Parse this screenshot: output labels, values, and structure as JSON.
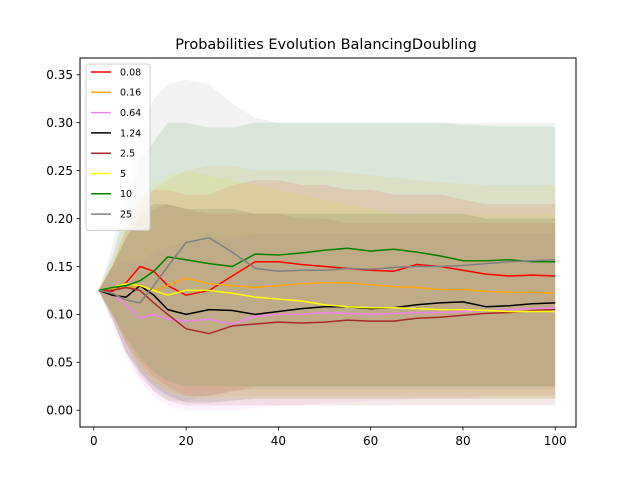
{
  "chart_data": {
    "type": "line",
    "title": "Probabilities Evolution BalancingDoubling",
    "xlabel": "",
    "ylabel": "",
    "xlim": [
      -3,
      104.5
    ],
    "ylim": [
      -0.0175,
      0.3675
    ],
    "xticks": [
      0,
      20,
      40,
      60,
      80,
      100
    ],
    "yticks": [
      0.0,
      0.05,
      0.1,
      0.15,
      0.2,
      0.25,
      0.3,
      0.35
    ],
    "ytick_labels": [
      "0.00",
      "0.05",
      "0.10",
      "0.15",
      "0.20",
      "0.25",
      "0.30",
      "0.35"
    ],
    "legend_position": "upper-left",
    "shaded_band": "spread around each series mean",
    "series": [
      {
        "name": "0.08",
        "color": "#ff0000",
        "x": [
          1,
          4,
          7,
          10,
          13,
          16,
          20,
          25,
          30,
          35,
          40,
          45,
          50,
          55,
          60,
          65,
          70,
          75,
          80,
          85,
          90,
          95,
          100
        ],
        "y": [
          0.125,
          0.124,
          0.133,
          0.15,
          0.145,
          0.13,
          0.12,
          0.125,
          0.14,
          0.155,
          0.155,
          0.152,
          0.15,
          0.148,
          0.146,
          0.145,
          0.152,
          0.15,
          0.146,
          0.142,
          0.14,
          0.141,
          0.14
        ],
        "band": [
          [
            0.125,
            0.125
          ],
          [
            0.1,
            0.15
          ],
          [
            0.07,
            0.19
          ],
          [
            0.05,
            0.22
          ],
          [
            0.035,
            0.23
          ],
          [
            0.025,
            0.23
          ],
          [
            0.015,
            0.225
          ],
          [
            0.015,
            0.225
          ],
          [
            0.02,
            0.235
          ],
          [
            0.025,
            0.24
          ],
          [
            0.025,
            0.24
          ],
          [
            0.025,
            0.235
          ],
          [
            0.025,
            0.235
          ],
          [
            0.025,
            0.23
          ],
          [
            0.025,
            0.23
          ],
          [
            0.025,
            0.225
          ],
          [
            0.025,
            0.225
          ],
          [
            0.025,
            0.225
          ],
          [
            0.025,
            0.22
          ],
          [
            0.025,
            0.215
          ],
          [
            0.025,
            0.215
          ],
          [
            0.025,
            0.215
          ],
          [
            0.025,
            0.215
          ]
        ]
      },
      {
        "name": "0.16",
        "color": "#ffa500",
        "x": [
          1,
          4,
          7,
          10,
          13,
          16,
          20,
          25,
          30,
          35,
          40,
          45,
          50,
          55,
          60,
          65,
          70,
          75,
          80,
          85,
          90,
          95,
          100
        ],
        "y": [
          0.125,
          0.126,
          0.128,
          0.13,
          0.125,
          0.13,
          0.138,
          0.132,
          0.13,
          0.128,
          0.13,
          0.132,
          0.133,
          0.133,
          0.131,
          0.129,
          0.128,
          0.126,
          0.126,
          0.124,
          0.123,
          0.123,
          0.122
        ],
        "band": [
          [
            0.125,
            0.125
          ],
          [
            0.1,
            0.152
          ],
          [
            0.07,
            0.19
          ],
          [
            0.045,
            0.21
          ],
          [
            0.03,
            0.23
          ],
          [
            0.02,
            0.24
          ],
          [
            0.015,
            0.25
          ],
          [
            0.015,
            0.255
          ],
          [
            0.015,
            0.255
          ],
          [
            0.015,
            0.25
          ],
          [
            0.015,
            0.25
          ],
          [
            0.015,
            0.25
          ],
          [
            0.015,
            0.25
          ],
          [
            0.015,
            0.248
          ],
          [
            0.015,
            0.245
          ],
          [
            0.015,
            0.243
          ],
          [
            0.015,
            0.24
          ],
          [
            0.015,
            0.238
          ],
          [
            0.015,
            0.236
          ],
          [
            0.015,
            0.235
          ],
          [
            0.015,
            0.235
          ],
          [
            0.015,
            0.235
          ],
          [
            0.015,
            0.235
          ]
        ]
      },
      {
        "name": "0.64",
        "color": "#ee82ee",
        "x": [
          1,
          4,
          7,
          10,
          13,
          16,
          20,
          25,
          30,
          35,
          40,
          45,
          50,
          55,
          60,
          65,
          70,
          75,
          80,
          85,
          90,
          95,
          100
        ],
        "y": [
          0.125,
          0.122,
          0.11,
          0.096,
          0.1,
          0.095,
          0.093,
          0.095,
          0.09,
          0.098,
          0.1,
          0.1,
          0.102,
          0.101,
          0.1,
          0.101,
          0.102,
          0.102,
          0.103,
          0.104,
          0.105,
          0.106,
          0.107
        ],
        "band": [
          [
            0.125,
            0.125
          ],
          [
            0.09,
            0.15
          ],
          [
            0.055,
            0.155
          ],
          [
            0.03,
            0.155
          ],
          [
            0.015,
            0.165
          ],
          [
            0.005,
            0.17
          ],
          [
            0.0,
            0.175
          ],
          [
            0.0,
            0.18
          ],
          [
            0.0,
            0.18
          ],
          [
            0.002,
            0.185
          ],
          [
            0.005,
            0.185
          ],
          [
            0.005,
            0.185
          ],
          [
            0.008,
            0.185
          ],
          [
            0.008,
            0.185
          ],
          [
            0.01,
            0.185
          ],
          [
            0.01,
            0.185
          ],
          [
            0.012,
            0.185
          ],
          [
            0.012,
            0.185
          ],
          [
            0.012,
            0.185
          ],
          [
            0.015,
            0.185
          ],
          [
            0.015,
            0.185
          ],
          [
            0.015,
            0.185
          ],
          [
            0.015,
            0.185
          ]
        ]
      },
      {
        "name": "1.24",
        "color": "#000000",
        "x": [
          1,
          4,
          7,
          10,
          13,
          16,
          20,
          25,
          30,
          35,
          40,
          45,
          50,
          55,
          60,
          65,
          70,
          75,
          80,
          85,
          90,
          95,
          100
        ],
        "y": [
          0.125,
          0.12,
          0.118,
          0.13,
          0.12,
          0.105,
          0.1,
          0.105,
          0.104,
          0.1,
          0.103,
          0.106,
          0.108,
          0.108,
          0.106,
          0.107,
          0.11,
          0.112,
          0.113,
          0.108,
          0.109,
          0.111,
          0.112
        ],
        "band": [
          [
            0.125,
            0.125
          ],
          [
            0.095,
            0.15
          ],
          [
            0.06,
            0.18
          ],
          [
            0.04,
            0.205
          ],
          [
            0.025,
            0.215
          ],
          [
            0.015,
            0.215
          ],
          [
            0.008,
            0.21
          ],
          [
            0.008,
            0.21
          ],
          [
            0.01,
            0.21
          ],
          [
            0.012,
            0.205
          ],
          [
            0.012,
            0.205
          ],
          [
            0.012,
            0.205
          ],
          [
            0.012,
            0.205
          ],
          [
            0.012,
            0.205
          ],
          [
            0.012,
            0.205
          ],
          [
            0.012,
            0.205
          ],
          [
            0.012,
            0.205
          ],
          [
            0.012,
            0.205
          ],
          [
            0.012,
            0.205
          ],
          [
            0.012,
            0.2
          ],
          [
            0.012,
            0.2
          ],
          [
            0.012,
            0.2
          ],
          [
            0.012,
            0.2
          ]
        ]
      },
      {
        "name": "2.5",
        "color": "#a52a2a",
        "x": [
          1,
          4,
          7,
          10,
          13,
          16,
          20,
          25,
          30,
          35,
          40,
          45,
          50,
          55,
          60,
          65,
          70,
          75,
          80,
          85,
          90,
          95,
          100
        ],
        "y": [
          0.125,
          0.125,
          0.128,
          0.125,
          0.112,
          0.1,
          0.085,
          0.08,
          0.088,
          0.09,
          0.092,
          0.091,
          0.092,
          0.094,
          0.093,
          0.093,
          0.096,
          0.097,
          0.099,
          0.101,
          0.102,
          0.104,
          0.105
        ],
        "band": [
          [
            0.125,
            0.125
          ],
          [
            0.095,
            0.15
          ],
          [
            0.06,
            0.18
          ],
          [
            0.035,
            0.2
          ],
          [
            0.02,
            0.21
          ],
          [
            0.01,
            0.215
          ],
          [
            0.005,
            0.21
          ],
          [
            0.005,
            0.205
          ],
          [
            0.005,
            0.205
          ],
          [
            0.005,
            0.205
          ],
          [
            0.005,
            0.205
          ],
          [
            0.005,
            0.2
          ],
          [
            0.005,
            0.2
          ],
          [
            0.005,
            0.195
          ],
          [
            0.005,
            0.195
          ],
          [
            0.005,
            0.195
          ],
          [
            0.005,
            0.195
          ],
          [
            0.005,
            0.195
          ],
          [
            0.005,
            0.195
          ],
          [
            0.005,
            0.195
          ],
          [
            0.005,
            0.195
          ],
          [
            0.005,
            0.195
          ],
          [
            0.005,
            0.195
          ]
        ]
      },
      {
        "name": "5",
        "color": "#ffff00",
        "x": [
          1,
          4,
          7,
          10,
          13,
          16,
          20,
          25,
          30,
          35,
          40,
          45,
          50,
          55,
          60,
          65,
          70,
          75,
          80,
          85,
          90,
          95,
          100
        ],
        "y": [
          0.125,
          0.128,
          0.132,
          0.13,
          0.125,
          0.12,
          0.125,
          0.125,
          0.122,
          0.118,
          0.116,
          0.114,
          0.11,
          0.108,
          0.107,
          0.107,
          0.106,
          0.105,
          0.105,
          0.104,
          0.103,
          0.103,
          0.103
        ],
        "band": [
          [
            0.125,
            0.125
          ],
          [
            0.1,
            0.155
          ],
          [
            0.07,
            0.195
          ],
          [
            0.045,
            0.22
          ],
          [
            0.03,
            0.235
          ],
          [
            0.02,
            0.245
          ],
          [
            0.012,
            0.25
          ],
          [
            0.012,
            0.245
          ],
          [
            0.012,
            0.24
          ],
          [
            0.012,
            0.235
          ],
          [
            0.012,
            0.23
          ],
          [
            0.012,
            0.225
          ],
          [
            0.012,
            0.22
          ],
          [
            0.012,
            0.215
          ],
          [
            0.012,
            0.21
          ],
          [
            0.012,
            0.205
          ],
          [
            0.012,
            0.205
          ],
          [
            0.012,
            0.205
          ],
          [
            0.012,
            0.205
          ],
          [
            0.012,
            0.205
          ],
          [
            0.012,
            0.205
          ],
          [
            0.012,
            0.205
          ],
          [
            0.012,
            0.205
          ]
        ]
      },
      {
        "name": "10",
        "color": "#008000",
        "x": [
          1,
          4,
          7,
          10,
          13,
          16,
          20,
          25,
          30,
          35,
          40,
          45,
          50,
          55,
          60,
          65,
          70,
          75,
          80,
          85,
          90,
          95,
          100
        ],
        "y": [
          0.125,
          0.128,
          0.13,
          0.135,
          0.145,
          0.16,
          0.157,
          0.153,
          0.15,
          0.163,
          0.162,
          0.164,
          0.167,
          0.169,
          0.166,
          0.168,
          0.165,
          0.161,
          0.156,
          0.156,
          0.157,
          0.155,
          0.155
        ],
        "band": [
          [
            0.125,
            0.125
          ],
          [
            0.1,
            0.16
          ],
          [
            0.075,
            0.21
          ],
          [
            0.055,
            0.26
          ],
          [
            0.04,
            0.28
          ],
          [
            0.03,
            0.3
          ],
          [
            0.025,
            0.3
          ],
          [
            0.025,
            0.295
          ],
          [
            0.025,
            0.295
          ],
          [
            0.025,
            0.3
          ],
          [
            0.025,
            0.3
          ],
          [
            0.025,
            0.3
          ],
          [
            0.025,
            0.3
          ],
          [
            0.025,
            0.3
          ],
          [
            0.025,
            0.3
          ],
          [
            0.025,
            0.3
          ],
          [
            0.025,
            0.3
          ],
          [
            0.025,
            0.3
          ],
          [
            0.025,
            0.298
          ],
          [
            0.025,
            0.297
          ],
          [
            0.025,
            0.296
          ],
          [
            0.025,
            0.296
          ],
          [
            0.025,
            0.296
          ]
        ]
      },
      {
        "name": "25",
        "color": "#808080",
        "x": [
          1,
          4,
          7,
          10,
          13,
          16,
          20,
          25,
          30,
          35,
          40,
          45,
          50,
          55,
          60,
          65,
          70,
          75,
          80,
          85,
          90,
          95,
          100
        ],
        "y": [
          0.125,
          0.122,
          0.115,
          0.112,
          0.13,
          0.15,
          0.175,
          0.18,
          0.165,
          0.148,
          0.145,
          0.146,
          0.146,
          0.148,
          0.147,
          0.149,
          0.15,
          0.15,
          0.151,
          0.153,
          0.155,
          0.156,
          0.157
        ],
        "band": [
          [
            0.125,
            0.125
          ],
          [
            0.1,
            0.17
          ],
          [
            0.07,
            0.23
          ],
          [
            0.04,
            0.29
          ],
          [
            0.02,
            0.325
          ],
          [
            0.01,
            0.34
          ],
          [
            0.01,
            0.345
          ],
          [
            0.015,
            0.34
          ],
          [
            0.02,
            0.32
          ],
          [
            0.022,
            0.305
          ],
          [
            0.022,
            0.3
          ],
          [
            0.022,
            0.3
          ],
          [
            0.022,
            0.3
          ],
          [
            0.022,
            0.3
          ],
          [
            0.022,
            0.3
          ],
          [
            0.022,
            0.3
          ],
          [
            0.022,
            0.3
          ],
          [
            0.022,
            0.3
          ],
          [
            0.022,
            0.3
          ],
          [
            0.022,
            0.3
          ],
          [
            0.022,
            0.3
          ],
          [
            0.022,
            0.3
          ],
          [
            0.022,
            0.3
          ]
        ]
      }
    ]
  }
}
